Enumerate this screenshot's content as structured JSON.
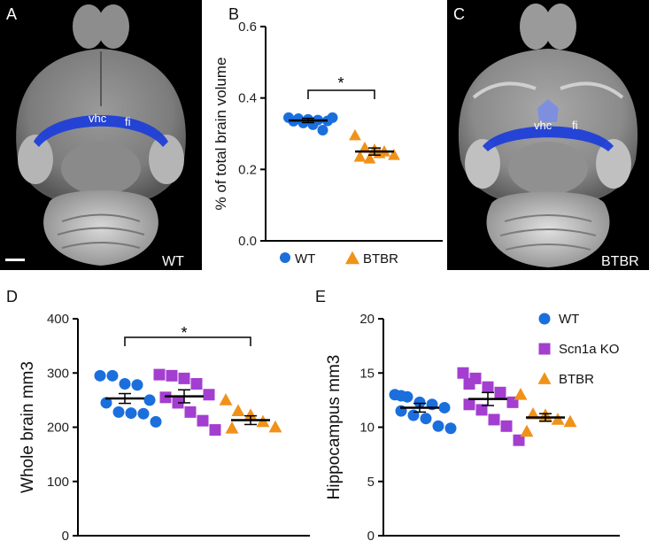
{
  "panels": {
    "A": {
      "label": "A",
      "genotype": "WT",
      "structure1": "vhc",
      "structure2": "fi"
    },
    "B": {
      "label": "B"
    },
    "C": {
      "label": "C",
      "genotype": "BTBR",
      "structure1": "vhc",
      "structure2": "fi"
    },
    "D": {
      "label": "D"
    },
    "E": {
      "label": "E"
    }
  },
  "colors": {
    "wt": "#1a6fdd",
    "scn": "#a33ed0",
    "btbr": "#f0921a",
    "brain_blue": "#1f3fd8"
  },
  "chart_data": [
    {
      "id": "B",
      "type": "scatter",
      "title": "",
      "xlabel": "",
      "ylabel": "% of total brain volume",
      "ylim": [
        0,
        0.6
      ],
      "yticks": [
        0.0,
        0.2,
        0.4,
        0.6
      ],
      "ytick_labels": [
        "0.0",
        "0.2",
        "0.4",
        "0.6"
      ],
      "legend_position": "bottom",
      "significance": "*",
      "series": [
        {
          "name": "WT",
          "marker": "circle",
          "color": "#1a6fdd",
          "mean": 0.337,
          "sem": 0.006,
          "values": [
            0.345,
            0.342,
            0.34,
            0.338,
            0.336,
            0.335,
            0.33,
            0.325,
            0.31,
            0.345
          ]
        },
        {
          "name": "BTBR",
          "marker": "triangle",
          "color": "#f0921a",
          "mean": 0.25,
          "sem": 0.01,
          "values": [
            0.295,
            0.26,
            0.255,
            0.25,
            0.24,
            0.235,
            0.23,
            0.245
          ]
        }
      ]
    },
    {
      "id": "D",
      "type": "scatter",
      "title": "",
      "xlabel": "",
      "ylabel": "Whole brain mm3",
      "ylim": [
        0,
        400
      ],
      "yticks": [
        0,
        100,
        200,
        300,
        400
      ],
      "ytick_labels": [
        "0",
        "100",
        "200",
        "300",
        "400"
      ],
      "significance": "*",
      "series": [
        {
          "name": "WT",
          "marker": "circle",
          "color": "#1a6fdd",
          "mean": 253,
          "sem": 9,
          "values": [
            295,
            295,
            280,
            278,
            250,
            245,
            228,
            226,
            225,
            210
          ]
        },
        {
          "name": "Scn1a KO",
          "marker": "square",
          "color": "#a33ed0",
          "mean": 257,
          "sem": 12,
          "values": [
            297,
            295,
            290,
            280,
            260,
            255,
            245,
            228,
            212,
            195
          ]
        },
        {
          "name": "BTBR",
          "marker": "triangle",
          "color": "#f0921a",
          "mean": 213,
          "sem": 8,
          "values": [
            250,
            230,
            222,
            210,
            200,
            198
          ]
        }
      ]
    },
    {
      "id": "E",
      "type": "scatter",
      "title": "",
      "xlabel": "",
      "ylabel": "Hippocampus mm3",
      "ylim": [
        0,
        20
      ],
      "yticks": [
        0,
        5,
        10,
        15,
        20
      ],
      "ytick_labels": [
        "0",
        "5",
        "10",
        "15",
        "20"
      ],
      "legend_position": "top-right",
      "series": [
        {
          "name": "WT",
          "marker": "circle",
          "color": "#1a6fdd",
          "mean": 11.8,
          "sem": 0.4,
          "values": [
            13.0,
            12.8,
            12.3,
            12.1,
            11.8,
            11.5,
            11.1,
            10.8,
            10.1,
            9.9,
            12.9
          ]
        },
        {
          "name": "Scn1a KO",
          "marker": "square",
          "color": "#a33ed0",
          "mean": 12.6,
          "sem": 0.6,
          "values": [
            15.0,
            14.5,
            13.7,
            13.2,
            12.3,
            12.1,
            11.6,
            10.7,
            10.1,
            8.8,
            14.0
          ]
        },
        {
          "name": "BTBR",
          "marker": "triangle",
          "color": "#f0921a",
          "mean": 10.9,
          "sem": 0.35,
          "values": [
            13.0,
            11.2,
            11.1,
            10.7,
            10.5,
            9.6
          ]
        }
      ]
    }
  ]
}
